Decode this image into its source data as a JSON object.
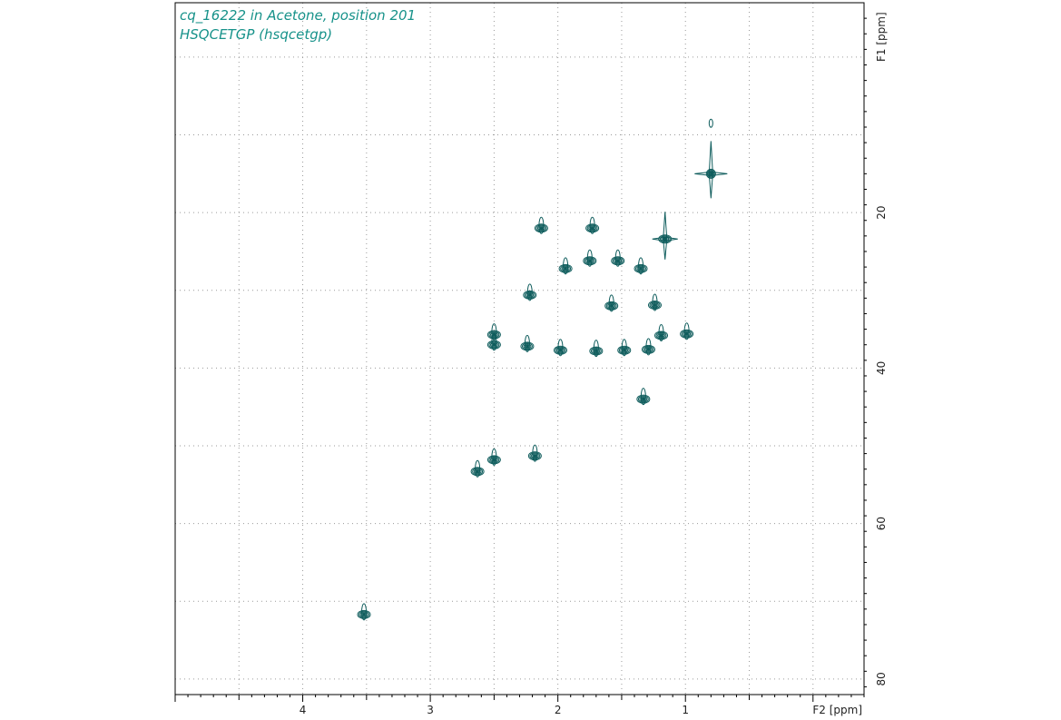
{
  "window": {
    "title_line1": "cq_16222 in Acetone, position 201",
    "title_line2": "HSQCETGP (hsqcetgp)"
  },
  "chart_data": {
    "type": "scatter",
    "subtype": "2D NMR HSQC contour plot",
    "title": "cq_16222 in Acetone, position 201",
    "subtitle": "HSQCETGP (hsqcetgp)",
    "xlabel": "F2 [ppm]",
    "ylabel": "F1 [ppm]",
    "xlim": [
      5.0,
      -0.4
    ],
    "ylim": [
      -7,
      82
    ],
    "x_ticks": [
      4,
      3,
      2,
      1
    ],
    "y_ticks": [
      20,
      40,
      60,
      80
    ],
    "grid": true,
    "grid_style": "dotted",
    "contour_color": "#0e5c5c",
    "peaks": [
      {
        "x": 0.8,
        "y": 8.5
      },
      {
        "x": 0.8,
        "y": 15.0
      },
      {
        "x": 1.16,
        "y": 23.4
      },
      {
        "x": 2.13,
        "y": 22.0
      },
      {
        "x": 1.73,
        "y": 22.0
      },
      {
        "x": 1.94,
        "y": 27.2
      },
      {
        "x": 1.75,
        "y": 26.2
      },
      {
        "x": 1.53,
        "y": 26.2
      },
      {
        "x": 1.35,
        "y": 27.2
      },
      {
        "x": 2.22,
        "y": 30.6
      },
      {
        "x": 1.58,
        "y": 32.0
      },
      {
        "x": 1.24,
        "y": 31.9
      },
      {
        "x": 2.5,
        "y": 35.7
      },
      {
        "x": 2.5,
        "y": 37.0
      },
      {
        "x": 2.24,
        "y": 37.2
      },
      {
        "x": 1.98,
        "y": 37.7
      },
      {
        "x": 1.7,
        "y": 37.8
      },
      {
        "x": 1.48,
        "y": 37.7
      },
      {
        "x": 1.19,
        "y": 35.8
      },
      {
        "x": 1.29,
        "y": 37.6
      },
      {
        "x": 0.99,
        "y": 35.6
      },
      {
        "x": 1.33,
        "y": 44.0
      },
      {
        "x": 2.18,
        "y": 51.3
      },
      {
        "x": 2.63,
        "y": 53.3
      },
      {
        "x": 2.5,
        "y": 51.8
      },
      {
        "x": 3.52,
        "y": 71.7
      }
    ]
  }
}
